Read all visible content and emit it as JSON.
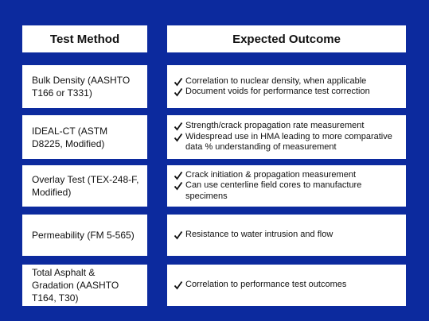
{
  "header": {
    "method": "Test Method",
    "outcome": "Expected Outcome"
  },
  "rows": [
    {
      "method": "Bulk Density (AASHTO T166 or T331)",
      "outcomes": [
        "Correlation to nuclear density, when applicable",
        "Document voids for performance test correction"
      ]
    },
    {
      "method": "IDEAL-CT (ASTM D8225, Modified)",
      "outcomes": [
        "Strength/crack propagation rate measurement",
        "Widespread use in HMA leading to more comparative data % understanding of measurement"
      ]
    },
    {
      "method": "Overlay Test (TEX-248-F, Modified)",
      "outcomes": [
        "Crack initiation & propagation measurement",
        "Can use centerline field cores to manufacture specimens"
      ]
    },
    {
      "method": "Permeability (FM 5-565)",
      "outcomes": [
        "Resistance to water intrusion and flow"
      ]
    },
    {
      "method": "Total Asphalt & Gradation (AASHTO T164, T30)",
      "outcomes": [
        "Correlation to performance test outcomes"
      ]
    }
  ]
}
